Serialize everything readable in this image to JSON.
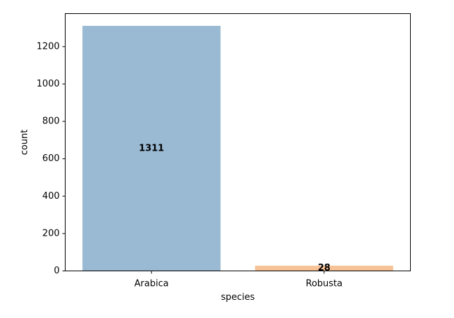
{
  "chart_data": {
    "type": "bar",
    "title": "",
    "xlabel": "species",
    "ylabel": "count",
    "categories": [
      "Arabica",
      "Robusta"
    ],
    "values": [
      1311,
      28
    ],
    "data_labels": [
      "1311",
      "28"
    ],
    "colors": [
      "#9ab9d2",
      "#f6c296"
    ],
    "yticks": [
      0,
      200,
      400,
      600,
      800,
      1000,
      1200
    ],
    "ylim": [
      0,
      1376.55
    ],
    "grid": false,
    "legend": "none"
  }
}
